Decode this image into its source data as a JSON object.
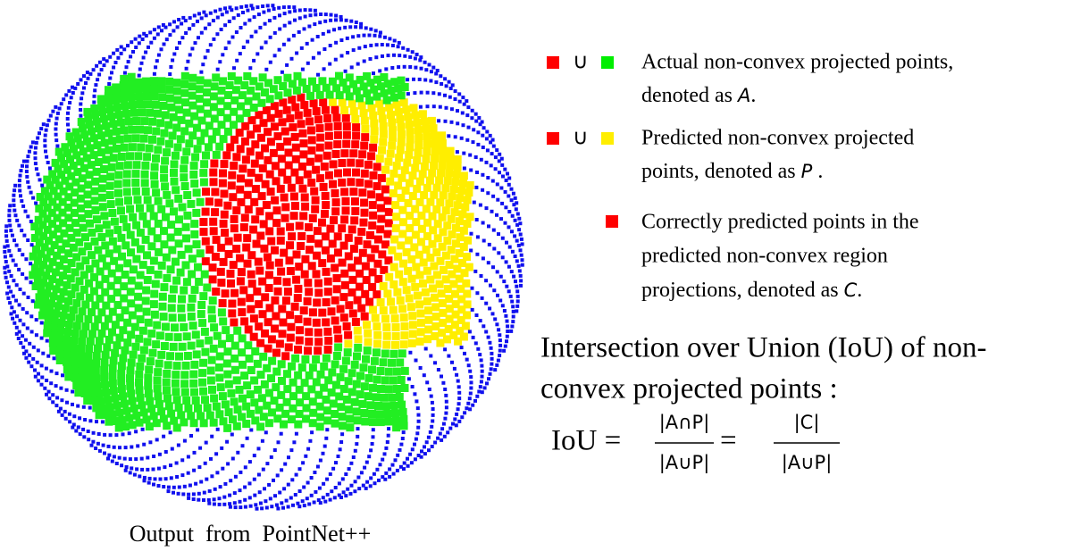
{
  "caption": "Output  from  PointNet++",
  "legend": [
    {
      "symbol": "∪",
      "lines": [
        "Actual non-convex projected points,"
      ],
      "last": "denoted as",
      "variable": "A",
      "end": "."
    },
    {
      "symbol": "∪",
      "lines": [
        "Predicted non-convex projected"
      ],
      "last": "points, denoted as",
      "variable": "P",
      "end": "."
    },
    {
      "lines": [
        "Correctly predicted points in the",
        "predicted non-convex region"
      ],
      "last": "projections, denoted as",
      "variable": "C",
      "end": "."
    }
  ],
  "iou": {
    "heading": [
      "Intersection over Union (IoU) of non-",
      "convex projected points :"
    ],
    "lhs": "IoU =",
    "eq": "=",
    "fractions": [
      {
        "num": "|A∩P|",
        "den": "|A∪P|"
      },
      {
        "num": "|C|",
        "den": "|A∪P|"
      }
    ]
  }
}
